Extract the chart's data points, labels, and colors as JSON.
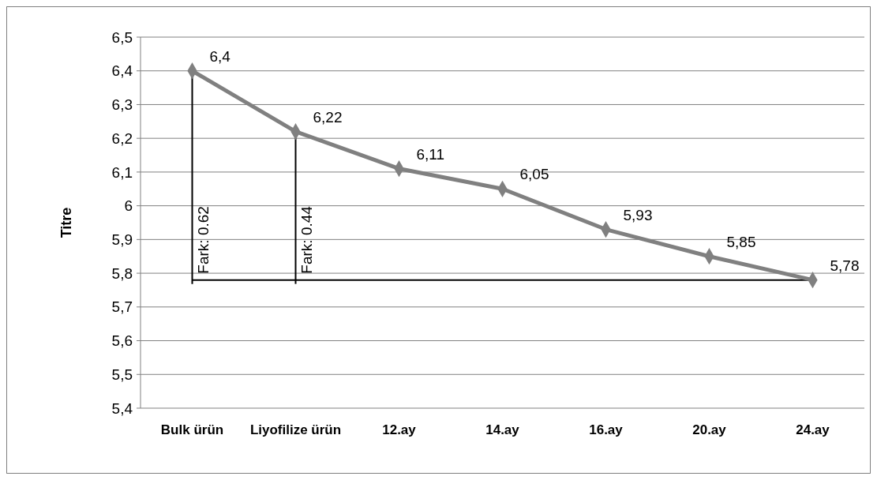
{
  "chart_data": {
    "type": "line",
    "ylabel": "Titre",
    "categories": [
      "Bulk ürün",
      "Liyofilize ürün",
      "12.ay",
      "14.ay",
      "16.ay",
      "20.ay",
      "24.ay"
    ],
    "series": [
      {
        "color": "#808080",
        "values": [
          6.4,
          6.22,
          6.11,
          6.05,
          5.93,
          5.85,
          5.78
        ],
        "value_labels": [
          "6,4",
          "6,22",
          "6,11",
          "6,05",
          "5,93",
          "5,85",
          "5,78"
        ]
      }
    ],
    "ylim": [
      5.4,
      6.5
    ],
    "yticks": [
      {
        "value": 5.4,
        "label": "5,4"
      },
      {
        "value": 5.5,
        "label": "5,5"
      },
      {
        "value": 5.6,
        "label": "5,6"
      },
      {
        "value": 5.7,
        "label": "5,7"
      },
      {
        "value": 5.8,
        "label": "5,8"
      },
      {
        "value": 5.9,
        "label": "5,9"
      },
      6,
      {
        "value": 6.1,
        "label": "6,1"
      },
      {
        "value": 6.2,
        "label": "6,2"
      },
      {
        "value": 6.3,
        "label": "6,3"
      },
      {
        "value": 6.4,
        "label": "6,4"
      },
      {
        "value": 6.5,
        "label": "6,5"
      }
    ],
    "grid": "y",
    "marker": "diamond",
    "line_style": "solid",
    "ref_lines": [
      {
        "axis": "y",
        "value": 5.78,
        "color": "#000000"
      }
    ],
    "annotations": [
      {
        "text": "Fark: 0.62",
        "x": "Bulk ürün",
        "y": 5.78
      },
      {
        "text": "Fark: 0.44",
        "x": "Liyofilize ürün",
        "y": 5.78
      }
    ]
  }
}
